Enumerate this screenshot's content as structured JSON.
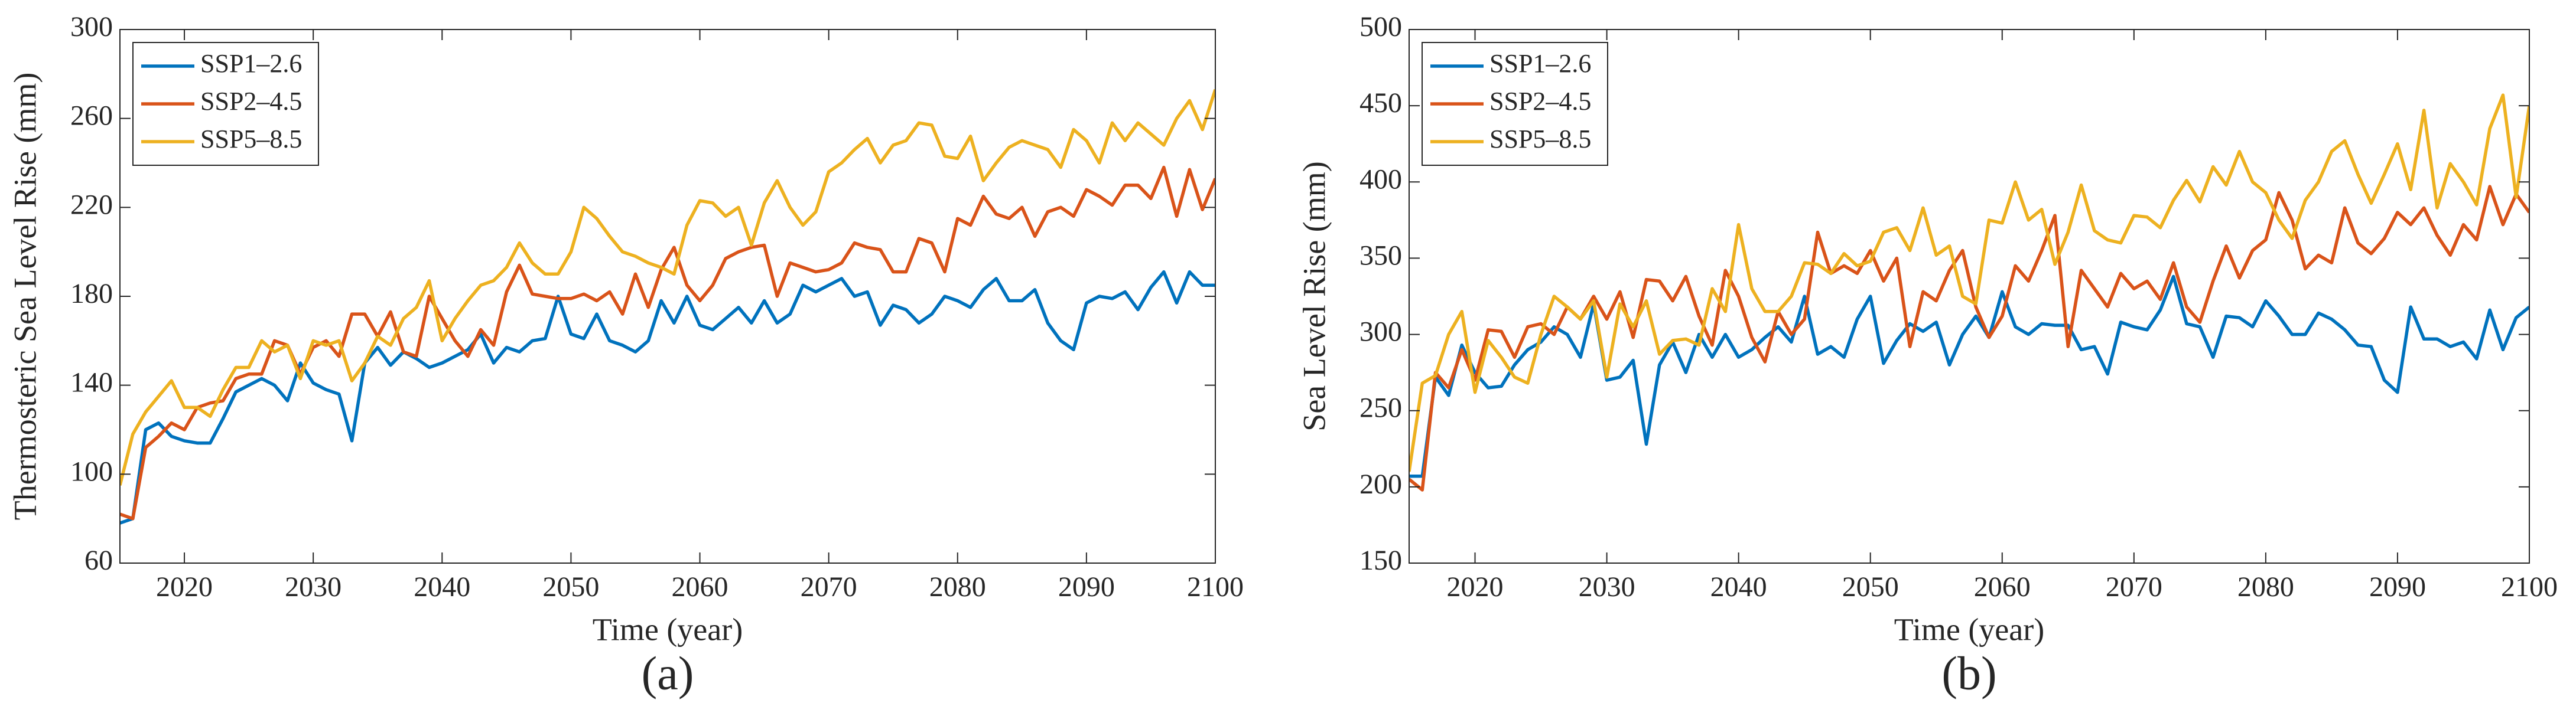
{
  "chart_data": [
    {
      "type": "line",
      "caption": "(a)",
      "xlabel": "Time (year)",
      "ylabel": "Thermosteric Sea Level Rise (mm)",
      "xlim": [
        2015,
        2100
      ],
      "xticks": [
        2020,
        2030,
        2040,
        2050,
        2060,
        2070,
        2080,
        2090,
        2100
      ],
      "ylim": [
        60,
        300
      ],
      "yticks": [
        60,
        100,
        140,
        180,
        220,
        260,
        300
      ],
      "legend": "upper-left",
      "x": [
        2015,
        2016,
        2017,
        2018,
        2019,
        2020,
        2021,
        2022,
        2023,
        2024,
        2025,
        2026,
        2027,
        2028,
        2029,
        2030,
        2031,
        2032,
        2033,
        2034,
        2035,
        2036,
        2037,
        2038,
        2039,
        2040,
        2041,
        2042,
        2043,
        2044,
        2045,
        2046,
        2047,
        2048,
        2049,
        2050,
        2051,
        2052,
        2053,
        2054,
        2055,
        2056,
        2057,
        2058,
        2059,
        2060,
        2061,
        2062,
        2063,
        2064,
        2065,
        2066,
        2067,
        2068,
        2069,
        2070,
        2071,
        2072,
        2073,
        2074,
        2075,
        2076,
        2077,
        2078,
        2079,
        2080,
        2081,
        2082,
        2083,
        2084,
        2085,
        2086,
        2087,
        2088,
        2089,
        2090,
        2091,
        2092,
        2093,
        2094,
        2095,
        2096,
        2097,
        2098,
        2099,
        2100
      ],
      "series": [
        {
          "name": "SSP1–2.6",
          "color": "#0072bd",
          "values": [
            78,
            80,
            120,
            123,
            117,
            115,
            114,
            114,
            125,
            137,
            140,
            143,
            140,
            133,
            150,
            141,
            138,
            136,
            115,
            150,
            157,
            149,
            155,
            152,
            148,
            150,
            153,
            156,
            163,
            150,
            157,
            155,
            160,
            161,
            180,
            163,
            161,
            172,
            160,
            158,
            155,
            160,
            178,
            168,
            180,
            167,
            165,
            170,
            175,
            168,
            178,
            168,
            172,
            185,
            182,
            185,
            188,
            180,
            182,
            167,
            176,
            174,
            168,
            172,
            180,
            178,
            175,
            183,
            188,
            178,
            178,
            183,
            168,
            160,
            156,
            177,
            180,
            179,
            182,
            174,
            184,
            191,
            177,
            191,
            185,
            185
          ]
        },
        {
          "name": "SSP2–4.5",
          "color": "#d95319",
          "values": [
            82,
            80,
            112,
            117,
            123,
            120,
            130,
            132,
            133,
            143,
            145,
            145,
            160,
            158,
            145,
            157,
            160,
            153,
            172,
            172,
            162,
            173,
            155,
            153,
            180,
            170,
            160,
            153,
            165,
            158,
            182,
            194,
            181,
            180,
            179,
            179,
            181,
            178,
            182,
            172,
            190,
            175,
            192,
            202,
            185,
            178,
            185,
            197,
            200,
            202,
            203,
            180,
            195,
            193,
            191,
            192,
            195,
            204,
            202,
            201,
            191,
            191,
            206,
            204,
            191,
            215,
            212,
            225,
            217,
            215,
            220,
            207,
            218,
            220,
            216,
            228,
            225,
            221,
            230,
            230,
            224,
            238,
            216,
            237,
            219,
            233
          ]
        },
        {
          "name": "SSP5–8.5",
          "color": "#edb120",
          "values": [
            95,
            118,
            128,
            135,
            142,
            130,
            130,
            126,
            138,
            148,
            148,
            160,
            155,
            158,
            143,
            160,
            158,
            160,
            142,
            150,
            162,
            158,
            170,
            175,
            187,
            160,
            170,
            178,
            185,
            187,
            193,
            204,
            195,
            190,
            190,
            200,
            220,
            215,
            207,
            200,
            198,
            195,
            193,
            190,
            212,
            223,
            222,
            216,
            220,
            203,
            222,
            232,
            220,
            212,
            218,
            236,
            240,
            246,
            251,
            240,
            248,
            250,
            258,
            257,
            243,
            242,
            252,
            232,
            240,
            247,
            250,
            248,
            246,
            238,
            255,
            250,
            240,
            258,
            250,
            258,
            253,
            248,
            260,
            268,
            255,
            273
          ]
        }
      ]
    },
    {
      "type": "line",
      "caption": "(b)",
      "xlabel": "Time (year)",
      "ylabel": "Sea Level Rise (mm)",
      "xlim": [
        2015,
        2100
      ],
      "xticks": [
        2020,
        2030,
        2040,
        2050,
        2060,
        2070,
        2080,
        2090,
        2100
      ],
      "ylim": [
        150,
        500
      ],
      "yticks": [
        150,
        200,
        250,
        300,
        350,
        400,
        450,
        500
      ],
      "legend": "upper-left",
      "x": [
        2015,
        2016,
        2017,
        2018,
        2019,
        2020,
        2021,
        2022,
        2023,
        2024,
        2025,
        2026,
        2027,
        2028,
        2029,
        2030,
        2031,
        2032,
        2033,
        2034,
        2035,
        2036,
        2037,
        2038,
        2039,
        2040,
        2041,
        2042,
        2043,
        2044,
        2045,
        2046,
        2047,
        2048,
        2049,
        2050,
        2051,
        2052,
        2053,
        2054,
        2055,
        2056,
        2057,
        2058,
        2059,
        2060,
        2061,
        2062,
        2063,
        2064,
        2065,
        2066,
        2067,
        2068,
        2069,
        2070,
        2071,
        2072,
        2073,
        2074,
        2075,
        2076,
        2077,
        2078,
        2079,
        2080,
        2081,
        2082,
        2083,
        2084,
        2085,
        2086,
        2087,
        2088,
        2089,
        2090,
        2091,
        2092,
        2093,
        2094,
        2095,
        2096,
        2097,
        2098,
        2099,
        2100
      ],
      "series": [
        {
          "name": "SSP1–2.6",
          "color": "#0072bd",
          "values": [
            207,
            207,
            272,
            260,
            293,
            275,
            265,
            266,
            280,
            290,
            295,
            305,
            300,
            285,
            320,
            270,
            272,
            283,
            228,
            280,
            295,
            275,
            300,
            285,
            300,
            285,
            290,
            298,
            305,
            295,
            325,
            287,
            292,
            285,
            310,
            325,
            281,
            296,
            307,
            302,
            308,
            280,
            300,
            312,
            298,
            328,
            305,
            300,
            307,
            306,
            306,
            290,
            292,
            274,
            308,
            305,
            303,
            316,
            338,
            307,
            305,
            285,
            312,
            311,
            305,
            322,
            312,
            300,
            300,
            314,
            310,
            303,
            293,
            292,
            270,
            262,
            318,
            297,
            297,
            292,
            295,
            284,
            316,
            290,
            311,
            318
          ]
        },
        {
          "name": "SSP2–4.5",
          "color": "#d95319",
          "values": [
            205,
            198,
            275,
            265,
            290,
            270,
            303,
            302,
            285,
            305,
            307,
            300,
            318,
            310,
            325,
            310,
            328,
            298,
            336,
            335,
            322,
            338,
            312,
            293,
            342,
            325,
            298,
            282,
            315,
            300,
            310,
            367,
            340,
            345,
            340,
            355,
            335,
            350,
            292,
            328,
            322,
            342,
            355,
            318,
            298,
            312,
            345,
            335,
            355,
            378,
            292,
            342,
            330,
            318,
            340,
            330,
            335,
            323,
            347,
            318,
            308,
            335,
            358,
            337,
            355,
            362,
            393,
            375,
            343,
            352,
            347,
            383,
            360,
            353,
            363,
            380,
            372,
            383,
            365,
            352,
            372,
            362,
            397,
            372,
            392,
            380
          ]
        },
        {
          "name": "SSP5–8.5",
          "color": "#edb120",
          "values": [
            210,
            268,
            273,
            300,
            315,
            262,
            296,
            285,
            272,
            268,
            300,
            325,
            318,
            310,
            322,
            272,
            320,
            305,
            322,
            287,
            296,
            297,
            293,
            330,
            315,
            372,
            330,
            315,
            315,
            325,
            347,
            346,
            340,
            353,
            345,
            348,
            367,
            370,
            355,
            383,
            352,
            358,
            325,
            320,
            375,
            373,
            400,
            375,
            382,
            346,
            367,
            398,
            368,
            362,
            360,
            378,
            377,
            370,
            388,
            401,
            387,
            410,
            398,
            420,
            400,
            393,
            375,
            363,
            388,
            400,
            420,
            427,
            405,
            386,
            405,
            425,
            395,
            447,
            383,
            412,
            400,
            385,
            435,
            457,
            390,
            450
          ]
        }
      ]
    }
  ]
}
